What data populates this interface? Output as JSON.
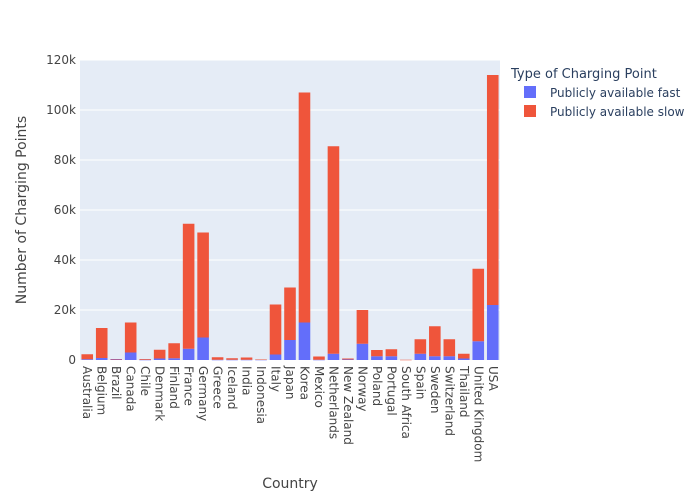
{
  "chart_data": {
    "type": "bar",
    "stacked": true,
    "xlabel": "Country",
    "ylabel": "Number of Charging Points",
    "ylim": [
      0,
      120000
    ],
    "yticks": [
      0,
      20000,
      40000,
      60000,
      80000,
      100000,
      120000
    ],
    "ytick_labels": [
      "0",
      "20k",
      "40k",
      "60k",
      "80k",
      "100k",
      "120k"
    ],
    "grid": true,
    "legend_title": "Type of Charging Point",
    "legend_position": "top-right",
    "categories": [
      "Australia",
      "Belgium",
      "Brazil",
      "Canada",
      "Chile",
      "Denmark",
      "Finland",
      "France",
      "Germany",
      "Greece",
      "Iceland",
      "India",
      "Indonesia",
      "Italy",
      "Japan",
      "Korea",
      "Mexico",
      "Netherlands",
      "New Zealand",
      "Norway",
      "Poland",
      "Portugal",
      "South Africa",
      "Spain",
      "Sweden",
      "Switzerland",
      "Thailand",
      "United Kingdom",
      "USA"
    ],
    "series": [
      {
        "name": "Publicly available fast",
        "color": "#636efa",
        "values": [
          300,
          800,
          200,
          3000,
          100,
          600,
          700,
          4500,
          9000,
          100,
          100,
          100,
          100,
          2200,
          8000,
          15000,
          100,
          2500,
          200,
          6500,
          1500,
          1500,
          0,
          2500,
          1500,
          1500,
          600,
          7500,
          22000
        ]
      },
      {
        "name": "Publicly available slow",
        "color": "#ef553b",
        "values": [
          2000,
          12000,
          200,
          12000,
          300,
          3500,
          6000,
          50000,
          42000,
          1000,
          600,
          900,
          100,
          20000,
          21000,
          92000,
          1300,
          83000,
          400,
          13500,
          2500,
          2800,
          100,
          5800,
          12000,
          6800,
          1900,
          29000,
          92000
        ]
      }
    ]
  }
}
